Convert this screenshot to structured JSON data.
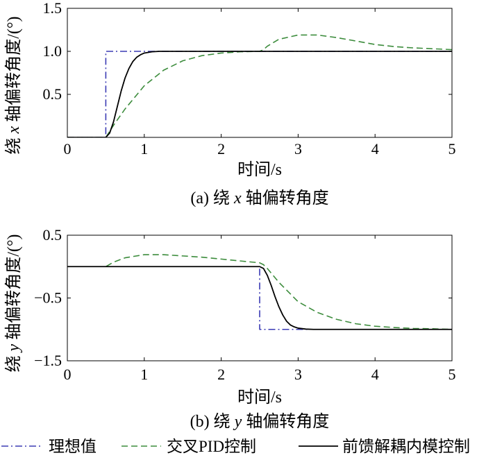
{
  "chart_data": [
    {
      "type": "line",
      "caption": [
        "(a) 绕 ",
        "x",
        " 轴偏转角度"
      ],
      "xlabel": "时间/s",
      "ylabel": [
        "绕 ",
        "x",
        " 轴偏转角度/(°)"
      ],
      "xlim": [
        0,
        5
      ],
      "ylim": [
        0,
        1.5
      ],
      "xticks": [
        0,
        1,
        2,
        3,
        4,
        5
      ],
      "xtick_labels": [
        "0",
        "1",
        "2",
        "3",
        "4",
        "5"
      ],
      "yticks": [
        0.5,
        1.0,
        1.5
      ],
      "ytick_labels": [
        "0.5",
        "1.0",
        "1.5"
      ],
      "grid": false,
      "series": [
        {
          "name": "理想值",
          "style": "dash-dot",
          "color": "#3a3ab4",
          "x": [
            0,
            0.5,
            0.5,
            5
          ],
          "y": [
            0,
            0,
            1.0,
            1.0
          ]
        },
        {
          "name": "交叉PID控制",
          "style": "dashed",
          "color": "#3c8c3c",
          "x": [
            0,
            0.5,
            0.6,
            0.75,
            1.0,
            1.25,
            1.5,
            1.75,
            2.0,
            2.25,
            2.5,
            2.55,
            2.6,
            2.75,
            3.0,
            3.25,
            3.5,
            3.75,
            4.0,
            4.25,
            4.5,
            4.75,
            5.0
          ],
          "y": [
            0,
            0,
            0.14,
            0.33,
            0.6,
            0.78,
            0.89,
            0.95,
            0.98,
            0.995,
            1.0,
            1.02,
            1.06,
            1.14,
            1.19,
            1.19,
            1.16,
            1.12,
            1.08,
            1.055,
            1.04,
            1.03,
            1.02
          ]
        },
        {
          "name": "前馈解耦内模控制",
          "style": "solid",
          "color": "#000000",
          "x": [
            0,
            0.5,
            0.55,
            0.6,
            0.65,
            0.7,
            0.75,
            0.8,
            0.85,
            0.9,
            0.95,
            1.0,
            1.1,
            1.2,
            5.0
          ],
          "y": [
            0,
            0,
            0.05,
            0.18,
            0.36,
            0.54,
            0.69,
            0.8,
            0.88,
            0.93,
            0.96,
            0.98,
            0.995,
            1.0,
            1.0
          ]
        }
      ]
    },
    {
      "type": "line",
      "caption": [
        "(b) 绕 ",
        "y",
        " 轴偏转角度"
      ],
      "xlabel": "时间/s",
      "ylabel": [
        "绕 ",
        "y",
        " 轴偏转角度/(°)"
      ],
      "xlim": [
        0,
        5
      ],
      "ylim": [
        -1.5,
        0.5
      ],
      "xticks": [
        0,
        1,
        2,
        3,
        4,
        5
      ],
      "xtick_labels": [
        "0",
        "1",
        "2",
        "3",
        "4",
        "5"
      ],
      "yticks": [
        0.5,
        -0.5,
        -1.5
      ],
      "ytick_labels": [
        "0.5",
        "−0.5",
        "−1.5"
      ],
      "grid": false,
      "series": [
        {
          "name": "理想值",
          "style": "dash-dot",
          "color": "#3a3ab4",
          "x": [
            0,
            2.5,
            2.5,
            5
          ],
          "y": [
            0,
            0,
            -1.0,
            -1.0
          ]
        },
        {
          "name": "交叉PID控制",
          "style": "dashed",
          "color": "#3c8c3c",
          "x": [
            0,
            0.5,
            0.6,
            0.75,
            1.0,
            1.25,
            1.5,
            1.75,
            2.0,
            2.25,
            2.5,
            2.55,
            2.6,
            2.75,
            3.0,
            3.25,
            3.5,
            3.75,
            4.0,
            4.25,
            4.5,
            4.75,
            5.0
          ],
          "y": [
            0,
            0,
            0.07,
            0.14,
            0.19,
            0.19,
            0.17,
            0.15,
            0.12,
            0.09,
            0.06,
            0.03,
            -0.03,
            -0.25,
            -0.56,
            -0.73,
            -0.84,
            -0.91,
            -0.95,
            -0.97,
            -0.985,
            -0.99,
            -1.0
          ]
        },
        {
          "name": "前馈解耦内模控制",
          "style": "solid",
          "color": "#000000",
          "x": [
            0,
            2.5,
            2.55,
            2.6,
            2.65,
            2.7,
            2.75,
            2.8,
            2.85,
            2.9,
            2.95,
            3.0,
            3.1,
            3.2,
            5.0
          ],
          "y": [
            0,
            0,
            -0.03,
            -0.14,
            -0.3,
            -0.48,
            -0.64,
            -0.77,
            -0.87,
            -0.93,
            -0.96,
            -0.98,
            -0.995,
            -1.0,
            -1.0
          ]
        }
      ]
    }
  ],
  "legend": {
    "placement": "bottom",
    "items": [
      {
        "label": "理想值",
        "style": "dash-dot",
        "color": "#3a3ab4"
      },
      {
        "label": "交叉PID控制",
        "style": "dashed",
        "color": "#3c8c3c"
      },
      {
        "label": "前馈解耦内模控制",
        "style": "solid",
        "color": "#000000"
      }
    ]
  }
}
